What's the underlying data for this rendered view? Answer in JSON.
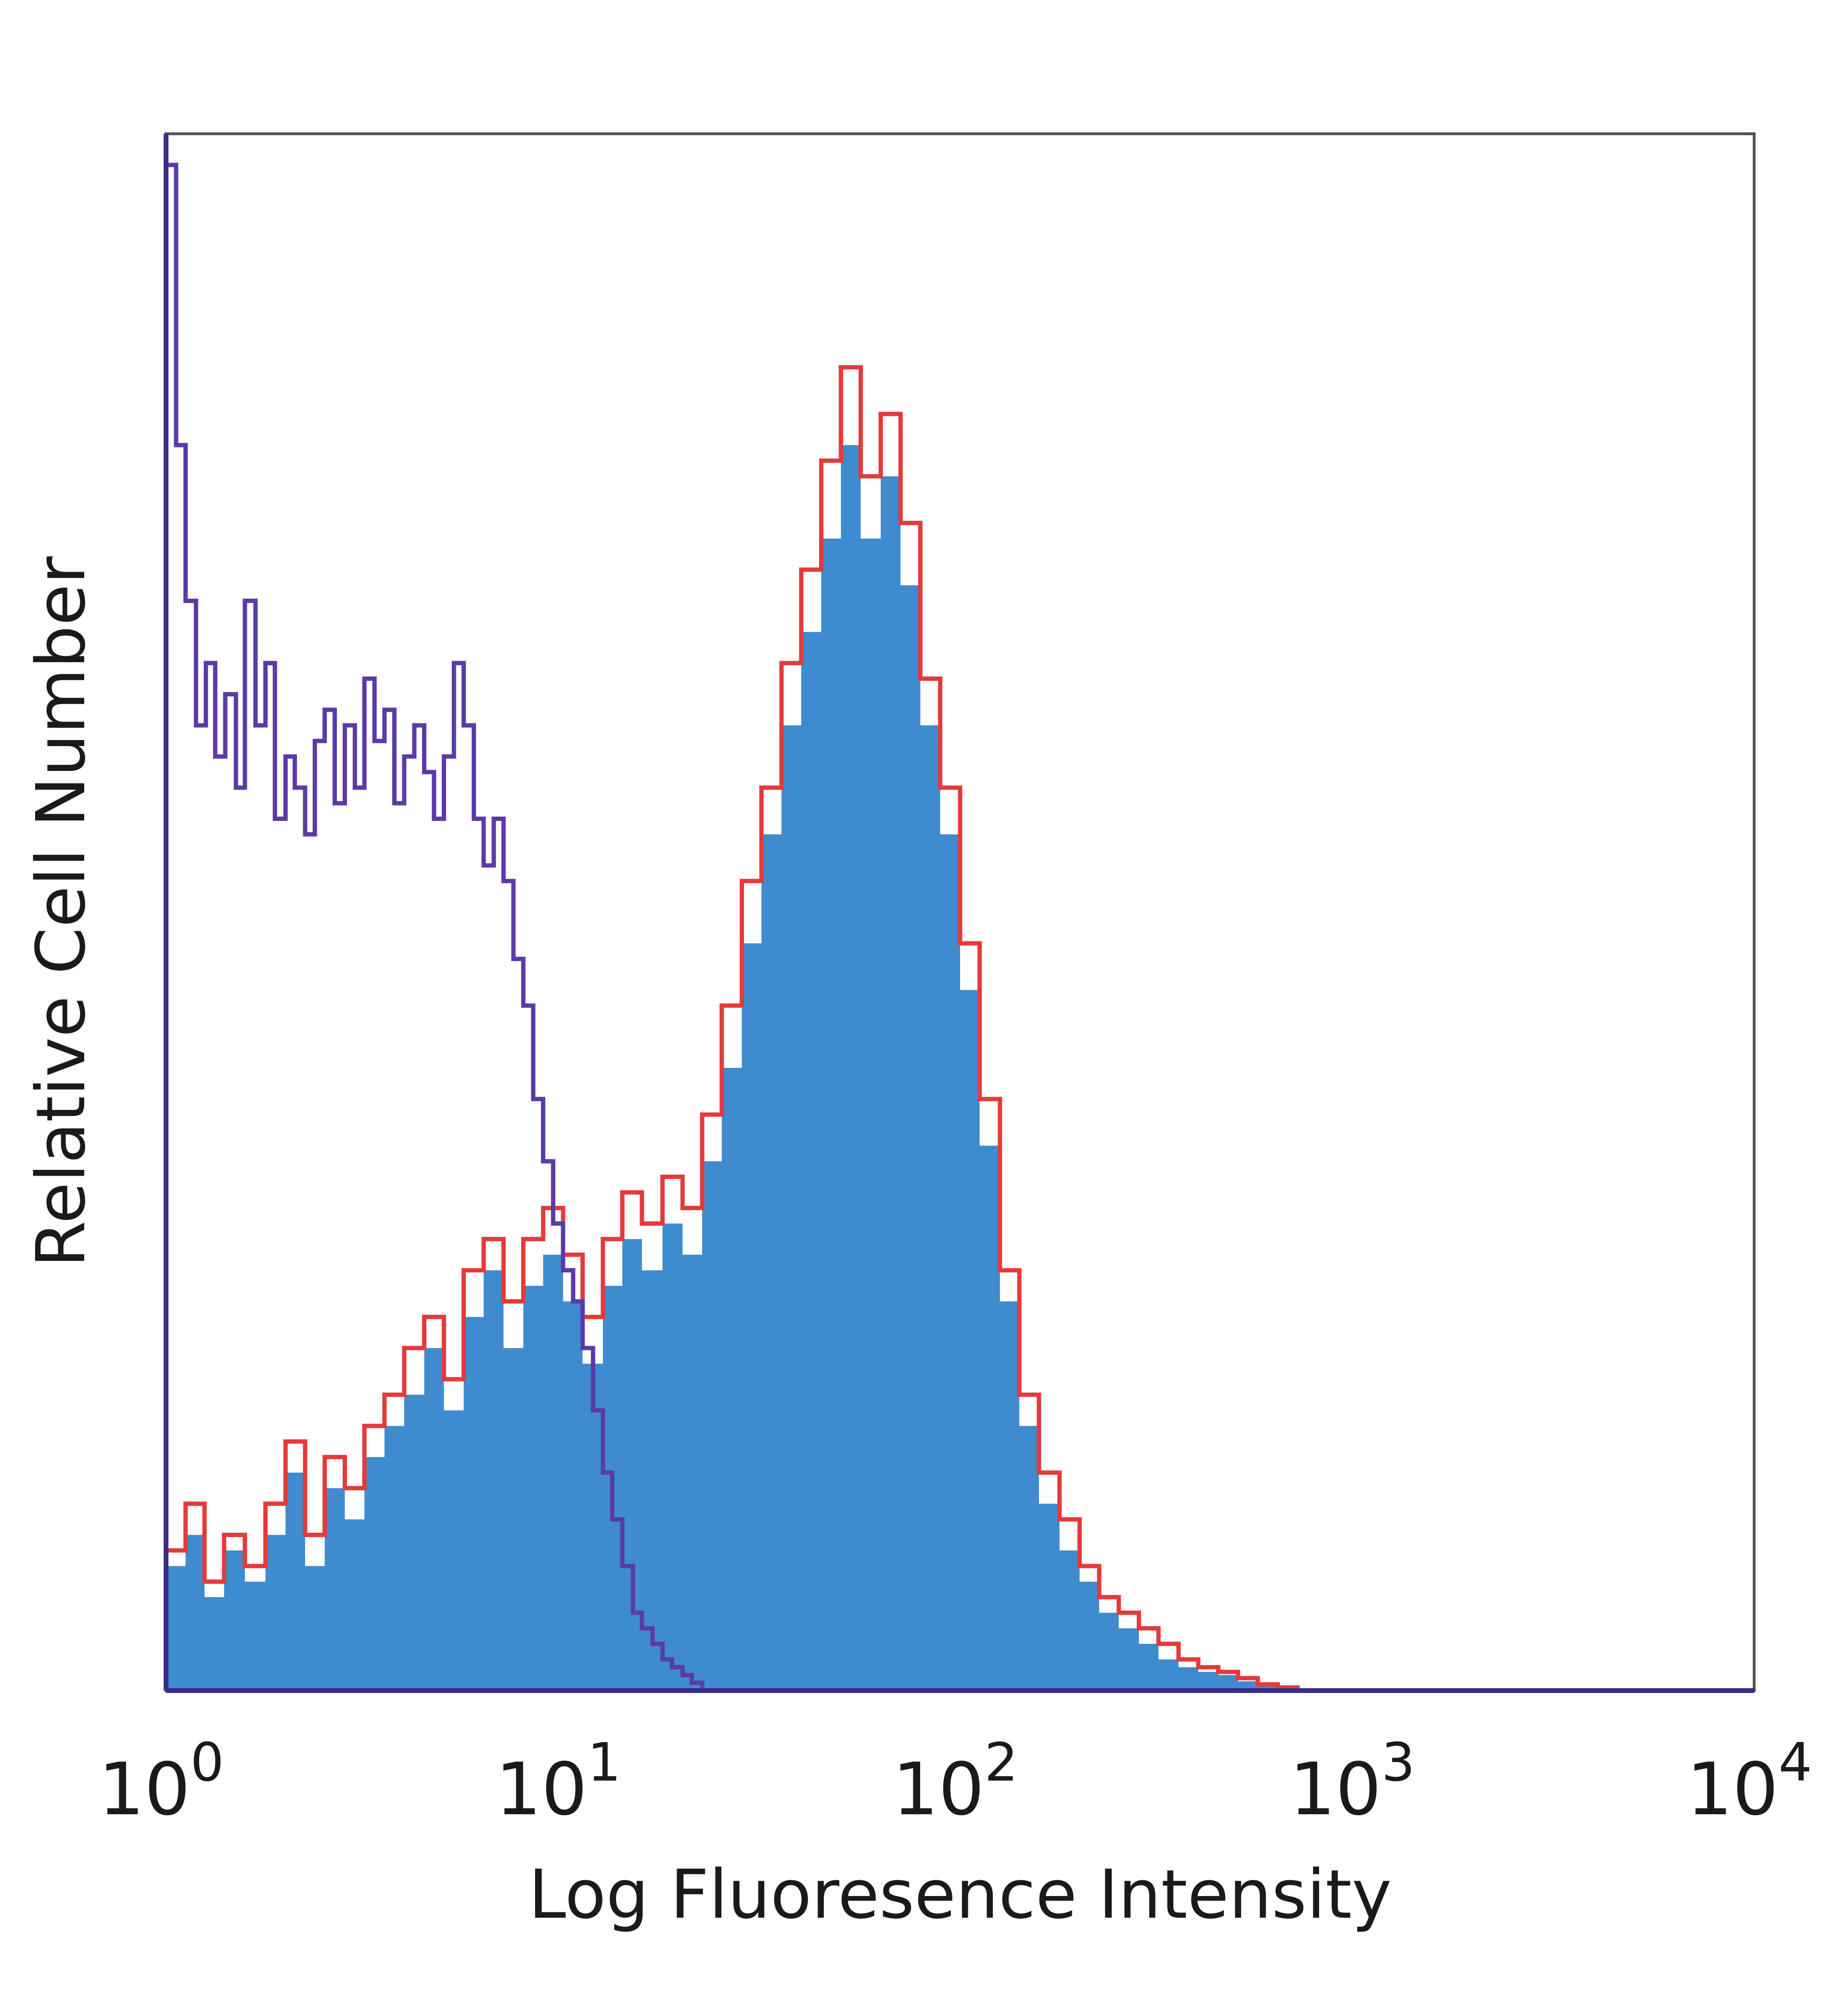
{
  "chart_data": {
    "type": "area",
    "title": "",
    "xlabel": "Log Fluoresence Intensity",
    "ylabel": "Relative Cell Number",
    "x_scale": "log",
    "xlim": [
      1,
      10000
    ],
    "ylim": [
      0,
      100
    ],
    "x_ticks": [
      {
        "base": "10",
        "exp": "0",
        "value": 1
      },
      {
        "base": "10",
        "exp": "1",
        "value": 10
      },
      {
        "base": "10",
        "exp": "2",
        "value": 100
      },
      {
        "base": "10",
        "exp": "3",
        "value": 1000
      },
      {
        "base": "10",
        "exp": "4",
        "value": 10000
      }
    ],
    "grid": false,
    "legend": "none",
    "series": [
      {
        "style": "filled",
        "color": "#3f8bcf",
        "points": [
          [
            1,
            8
          ],
          [
            1.12,
            10
          ],
          [
            1.25,
            6
          ],
          [
            1.4,
            9
          ],
          [
            1.58,
            7
          ],
          [
            1.78,
            10
          ],
          [
            2,
            14
          ],
          [
            2.24,
            8
          ],
          [
            2.51,
            13
          ],
          [
            2.82,
            11
          ],
          [
            3.16,
            15
          ],
          [
            3.55,
            17
          ],
          [
            3.98,
            19
          ],
          [
            4.47,
            22
          ],
          [
            5.01,
            18
          ],
          [
            5.62,
            24
          ],
          [
            6.31,
            27
          ],
          [
            7.08,
            22
          ],
          [
            7.94,
            26
          ],
          [
            8.91,
            28
          ],
          [
            10,
            25
          ],
          [
            11.2,
            21
          ],
          [
            12.6,
            26
          ],
          [
            14.1,
            29
          ],
          [
            15.8,
            27
          ],
          [
            17.8,
            30
          ],
          [
            20,
            28
          ],
          [
            22.4,
            34
          ],
          [
            25.1,
            40
          ],
          [
            28.2,
            48
          ],
          [
            31.6,
            55
          ],
          [
            35.5,
            62
          ],
          [
            39.8,
            68
          ],
          [
            44.7,
            74
          ],
          [
            50.1,
            80
          ],
          [
            56.2,
            74
          ],
          [
            63.1,
            78
          ],
          [
            70.8,
            71
          ],
          [
            79.4,
            62
          ],
          [
            89.1,
            55
          ],
          [
            100,
            45
          ],
          [
            112,
            35
          ],
          [
            126,
            25
          ],
          [
            141,
            17
          ],
          [
            158,
            12
          ],
          [
            178,
            9
          ],
          [
            200,
            7
          ],
          [
            224,
            5
          ],
          [
            251,
            4
          ],
          [
            282,
            3
          ],
          [
            316,
            2
          ],
          [
            355,
            1.5
          ],
          [
            398,
            1.2
          ],
          [
            447,
            1
          ],
          [
            501,
            0.6
          ],
          [
            562,
            0.3
          ],
          [
            631,
            0
          ]
        ]
      },
      {
        "style": "outline",
        "color": "#e53a3a",
        "points": [
          [
            1,
            9
          ],
          [
            1.12,
            12
          ],
          [
            1.25,
            7
          ],
          [
            1.4,
            10
          ],
          [
            1.58,
            8
          ],
          [
            1.78,
            12
          ],
          [
            2,
            16
          ],
          [
            2.24,
            10
          ],
          [
            2.51,
            15
          ],
          [
            2.82,
            13
          ],
          [
            3.16,
            17
          ],
          [
            3.55,
            19
          ],
          [
            3.98,
            22
          ],
          [
            4.47,
            24
          ],
          [
            5.01,
            20
          ],
          [
            5.62,
            27
          ],
          [
            6.31,
            29
          ],
          [
            7.08,
            25
          ],
          [
            7.94,
            29
          ],
          [
            8.91,
            31
          ],
          [
            10,
            28
          ],
          [
            11.2,
            24
          ],
          [
            12.6,
            29
          ],
          [
            14.1,
            32
          ],
          [
            15.8,
            30
          ],
          [
            17.8,
            33
          ],
          [
            20,
            31
          ],
          [
            22.4,
            37
          ],
          [
            25.1,
            44
          ],
          [
            28.2,
            52
          ],
          [
            31.6,
            58
          ],
          [
            35.5,
            66
          ],
          [
            39.8,
            72
          ],
          [
            44.7,
            79
          ],
          [
            50.1,
            85
          ],
          [
            56.2,
            78
          ],
          [
            63.1,
            82
          ],
          [
            70.8,
            75
          ],
          [
            79.4,
            65
          ],
          [
            89.1,
            58
          ],
          [
            100,
            48
          ],
          [
            112,
            38
          ],
          [
            126,
            27
          ],
          [
            141,
            19
          ],
          [
            158,
            14
          ],
          [
            178,
            11
          ],
          [
            200,
            8
          ],
          [
            224,
            6
          ],
          [
            251,
            5
          ],
          [
            282,
            4
          ],
          [
            316,
            3
          ],
          [
            355,
            2
          ],
          [
            398,
            1.5
          ],
          [
            447,
            1.2
          ],
          [
            501,
            0.8
          ],
          [
            562,
            0.4
          ],
          [
            631,
            0.2
          ],
          [
            708,
            0
          ]
        ]
      },
      {
        "style": "outline",
        "color": "#5b3aa8",
        "points": [
          [
            1,
            98
          ],
          [
            1.06,
            80
          ],
          [
            1.12,
            70
          ],
          [
            1.19,
            62
          ],
          [
            1.26,
            66
          ],
          [
            1.33,
            60
          ],
          [
            1.41,
            64
          ],
          [
            1.5,
            58
          ],
          [
            1.58,
            70
          ],
          [
            1.68,
            62
          ],
          [
            1.78,
            66
          ],
          [
            1.88,
            56
          ],
          [
            2,
            60
          ],
          [
            2.11,
            58
          ],
          [
            2.24,
            55
          ],
          [
            2.37,
            61
          ],
          [
            2.51,
            63
          ],
          [
            2.66,
            57
          ],
          [
            2.82,
            62
          ],
          [
            2.99,
            58
          ],
          [
            3.16,
            65
          ],
          [
            3.35,
            61
          ],
          [
            3.55,
            63
          ],
          [
            3.76,
            57
          ],
          [
            3.98,
            60
          ],
          [
            4.22,
            62
          ],
          [
            4.47,
            59
          ],
          [
            4.73,
            56
          ],
          [
            5.01,
            60
          ],
          [
            5.31,
            66
          ],
          [
            5.62,
            62
          ],
          [
            5.96,
            56
          ],
          [
            6.31,
            53
          ],
          [
            6.69,
            56
          ],
          [
            7.08,
            52
          ],
          [
            7.5,
            47
          ],
          [
            7.94,
            44
          ],
          [
            8.41,
            38
          ],
          [
            8.91,
            34
          ],
          [
            9.44,
            30
          ],
          [
            10,
            27
          ],
          [
            10.6,
            25
          ],
          [
            11.2,
            22
          ],
          [
            11.9,
            18
          ],
          [
            12.6,
            14
          ],
          [
            13.3,
            11
          ],
          [
            14.1,
            8
          ],
          [
            15,
            5
          ],
          [
            15.8,
            4
          ],
          [
            16.8,
            3
          ],
          [
            17.8,
            2
          ],
          [
            18.8,
            1.5
          ],
          [
            20,
            1
          ],
          [
            21.1,
            0.5
          ],
          [
            22.4,
            0
          ],
          [
            100,
            0
          ],
          [
            1000,
            0
          ],
          [
            10000,
            0
          ]
        ]
      }
    ]
  }
}
